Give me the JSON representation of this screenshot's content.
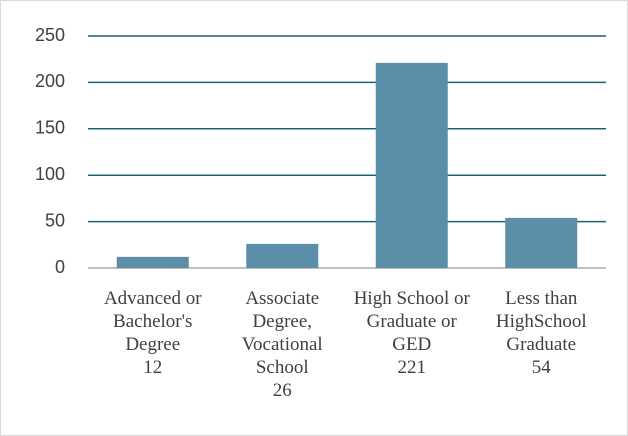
{
  "chart_data": {
    "type": "bar",
    "categories": [
      "Advanced or Bachelor's Degree",
      "Associate Degree, Vocational School",
      "High School or Graduate or GED",
      "Less than HighSchool Graduate"
    ],
    "values": [
      12,
      26,
      221,
      54
    ],
    "color": "#5b8fa8",
    "ylim": [
      0,
      250
    ],
    "yticks": [
      0,
      50,
      100,
      150,
      200,
      250
    ],
    "grid": true
  }
}
